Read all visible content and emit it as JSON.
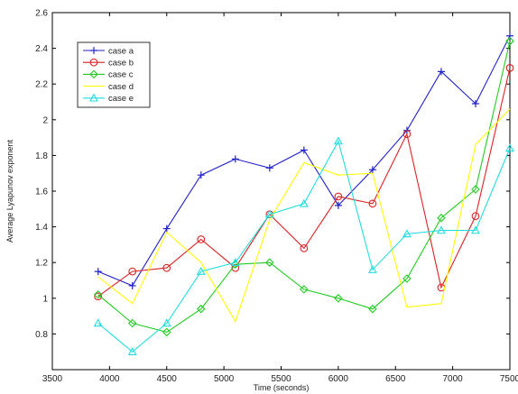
{
  "chart_data": {
    "type": "line",
    "xlabel": "Time (seconds)",
    "ylabel": "Average Lyapunov exponent",
    "xlim": [
      3500,
      7500
    ],
    "ylim": [
      0.6,
      2.6
    ],
    "xticks": [
      3500,
      4000,
      4500,
      5000,
      5500,
      6000,
      6500,
      7000,
      7500
    ],
    "yticks": [
      0.8,
      1,
      1.2,
      1.4,
      1.6,
      1.8,
      2,
      2.2,
      2.4,
      2.6
    ],
    "xtick_labels": [
      "3500",
      "4000",
      "4500",
      "5000",
      "5500",
      "6000",
      "6500",
      "7000",
      "7500"
    ],
    "ytick_labels": [
      "0.8",
      "1",
      "1.2",
      "1.4",
      "1.6",
      "1.8",
      "2",
      "2.2",
      "2.4",
      "2.6"
    ],
    "grid": false,
    "legend_position": "top-left",
    "x": [
      3900,
      4200,
      4500,
      4800,
      5100,
      5400,
      5700,
      6000,
      6300,
      6600,
      6900,
      7200,
      7500
    ],
    "series": [
      {
        "name": "case a",
        "color": "#2222cc",
        "marker": "plus",
        "values": [
          1.15,
          1.07,
          1.39,
          1.69,
          1.78,
          1.73,
          1.83,
          1.52,
          1.72,
          1.94,
          2.27,
          2.09,
          2.47
        ]
      },
      {
        "name": "case b",
        "color": "#dd2222",
        "marker": "circle",
        "values": [
          1.01,
          1.15,
          1.17,
          1.33,
          1.17,
          1.47,
          1.28,
          1.57,
          1.53,
          1.92,
          1.06,
          1.46,
          2.29
        ]
      },
      {
        "name": "case c",
        "color": "#22cc22",
        "marker": "diamond",
        "values": [
          1.02,
          0.86,
          0.81,
          0.94,
          1.19,
          1.2,
          1.05,
          1.0,
          0.94,
          1.11,
          1.45,
          1.61,
          2.44
        ]
      },
      {
        "name": "case d",
        "color": "#ffff00",
        "marker": "none",
        "values": [
          1.12,
          0.97,
          1.37,
          1.2,
          0.87,
          1.44,
          1.76,
          1.69,
          1.7,
          0.95,
          0.97,
          1.86,
          2.06
        ]
      },
      {
        "name": "case e",
        "color": "#22dddd",
        "marker": "triangle",
        "values": [
          0.86,
          0.7,
          0.86,
          1.15,
          1.2,
          1.47,
          1.53,
          1.88,
          1.16,
          1.36,
          1.38,
          1.38,
          1.84
        ]
      }
    ]
  }
}
